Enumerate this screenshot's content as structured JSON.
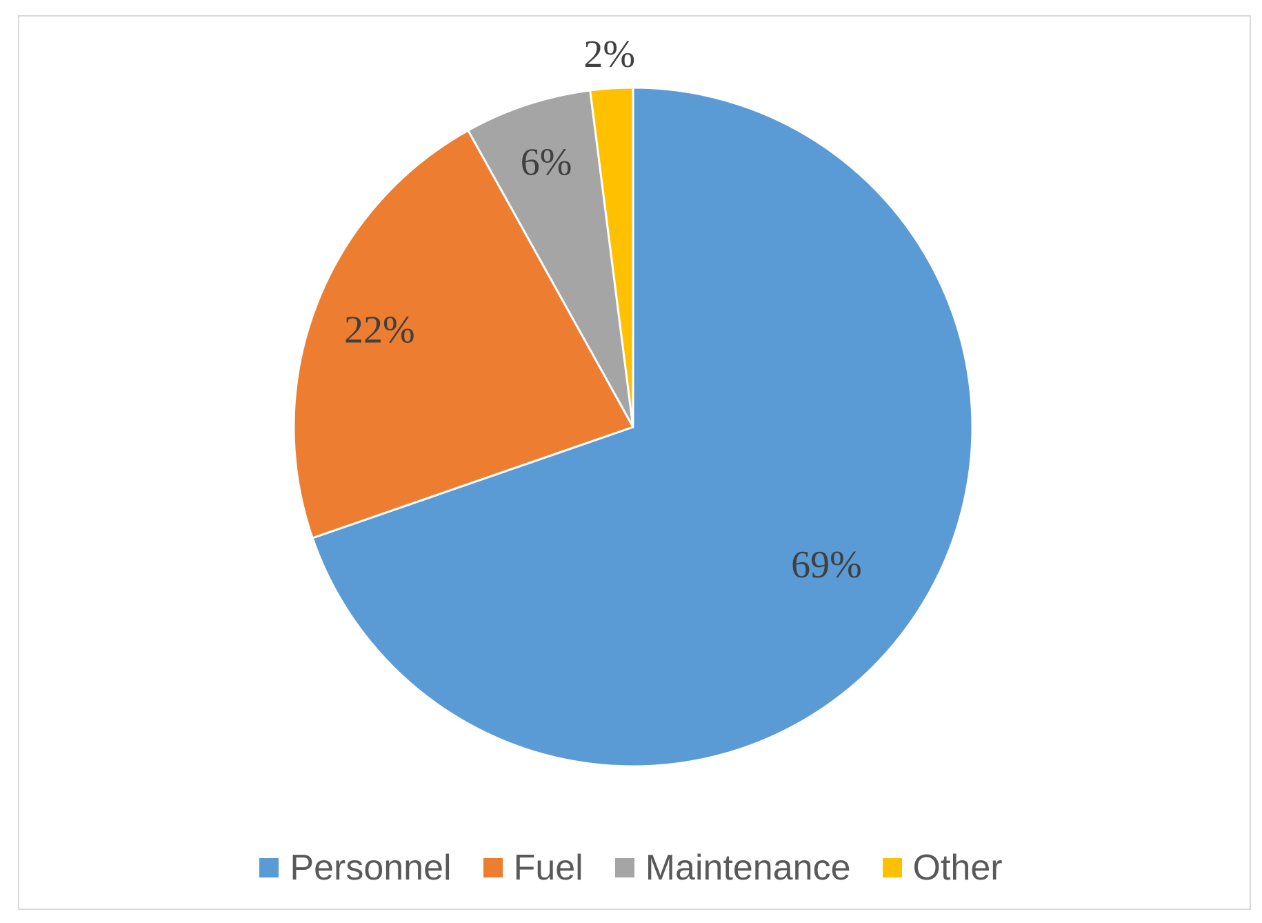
{
  "chart_data": {
    "type": "pie",
    "title": "",
    "categories": [
      "Personnel",
      "Fuel",
      "Maintenance",
      "Other"
    ],
    "values": [
      69,
      22,
      6,
      2
    ],
    "data_labels": [
      "69%",
      "22%",
      "6%",
      "2%"
    ],
    "colors": [
      "#5b9bd5",
      "#ed7d31",
      "#a5a5a5",
      "#ffc000"
    ],
    "legend_position": "bottom",
    "start_angle": "12 o'clock",
    "direction": "clockwise"
  }
}
